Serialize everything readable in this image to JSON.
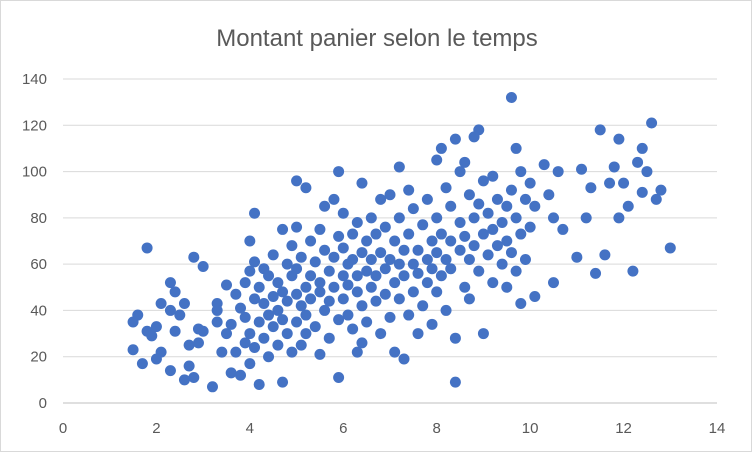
{
  "chart_data": {
    "type": "scatter",
    "title": "Montant panier selon le temps",
    "xlabel": "",
    "ylabel": "",
    "xlim": [
      0,
      14
    ],
    "ylim": [
      0,
      140
    ],
    "x_ticks": [
      0,
      2,
      4,
      6,
      8,
      10,
      12,
      14
    ],
    "y_ticks": [
      0,
      20,
      40,
      60,
      80,
      100,
      120,
      140
    ],
    "grid": "horizontal",
    "legend": "none",
    "marker_color": "#4472c4",
    "series": [
      {
        "points": [
          [
            1.5,
            23
          ],
          [
            1.5,
            35
          ],
          [
            1.6,
            38
          ],
          [
            1.7,
            17
          ],
          [
            1.8,
            31
          ],
          [
            1.8,
            67
          ],
          [
            1.9,
            29
          ],
          [
            2,
            33
          ],
          [
            2,
            19
          ],
          [
            2.1,
            43
          ],
          [
            2.1,
            22
          ],
          [
            2.3,
            52
          ],
          [
            2.3,
            14
          ],
          [
            2.3,
            40
          ],
          [
            2.4,
            31
          ],
          [
            2.4,
            48
          ],
          [
            2.5,
            38
          ],
          [
            2.6,
            10
          ],
          [
            2.6,
            43
          ],
          [
            2.7,
            16
          ],
          [
            2.7,
            25
          ],
          [
            2.8,
            63
          ],
          [
            2.8,
            11
          ],
          [
            2.9,
            26
          ],
          [
            2.9,
            32
          ],
          [
            3,
            59
          ],
          [
            3,
            31
          ],
          [
            3.2,
            7
          ],
          [
            3.3,
            35
          ],
          [
            3.3,
            43
          ],
          [
            3.3,
            40
          ],
          [
            3.4,
            22
          ],
          [
            3.5,
            51
          ],
          [
            3.5,
            30
          ],
          [
            3.6,
            13
          ],
          [
            3.6,
            34
          ],
          [
            3.7,
            47
          ],
          [
            3.7,
            22
          ],
          [
            3.8,
            12
          ],
          [
            3.8,
            41
          ],
          [
            3.9,
            37
          ],
          [
            3.9,
            26
          ],
          [
            3.9,
            52
          ],
          [
            4,
            70
          ],
          [
            4,
            30
          ],
          [
            4,
            57
          ],
          [
            4,
            17
          ],
          [
            4.1,
            82
          ],
          [
            4.1,
            45
          ],
          [
            4.1,
            61
          ],
          [
            4.1,
            24
          ],
          [
            4.2,
            8
          ],
          [
            4.2,
            35
          ],
          [
            4.2,
            50
          ],
          [
            4.3,
            58
          ],
          [
            4.3,
            43
          ],
          [
            4.3,
            28
          ],
          [
            4.4,
            38
          ],
          [
            4.4,
            55
          ],
          [
            4.4,
            20
          ],
          [
            4.5,
            46
          ],
          [
            4.5,
            33
          ],
          [
            4.5,
            64
          ],
          [
            4.6,
            25
          ],
          [
            4.6,
            52
          ],
          [
            4.6,
            40
          ],
          [
            4.7,
            75
          ],
          [
            4.7,
            9
          ],
          [
            4.7,
            48
          ],
          [
            4.7,
            36
          ],
          [
            4.8,
            60
          ],
          [
            4.8,
            30
          ],
          [
            4.8,
            44
          ],
          [
            4.9,
            68
          ],
          [
            4.9,
            22
          ],
          [
            4.9,
            55
          ],
          [
            5,
            35
          ],
          [
            5,
            47
          ],
          [
            5,
            76
          ],
          [
            5,
            58
          ],
          [
            5,
            96
          ],
          [
            5.1,
            42
          ],
          [
            5.1,
            25
          ],
          [
            5.1,
            63
          ],
          [
            5.2,
            93
          ],
          [
            5.2,
            50
          ],
          [
            5.2,
            38
          ],
          [
            5.2,
            30
          ],
          [
            5.3,
            70
          ],
          [
            5.3,
            55
          ],
          [
            5.3,
            45
          ],
          [
            5.4,
            61
          ],
          [
            5.4,
            33
          ],
          [
            5.5,
            75
          ],
          [
            5.5,
            21
          ],
          [
            5.5,
            48
          ],
          [
            5.5,
            52
          ],
          [
            5.6,
            40
          ],
          [
            5.6,
            66
          ],
          [
            5.6,
            85
          ],
          [
            5.7,
            57
          ],
          [
            5.7,
            44
          ],
          [
            5.7,
            28
          ],
          [
            5.8,
            88
          ],
          [
            5.8,
            63
          ],
          [
            5.8,
            50
          ],
          [
            5.9,
            11
          ],
          [
            5.9,
            72
          ],
          [
            5.9,
            36
          ],
          [
            5.9,
            100
          ],
          [
            6,
            55
          ],
          [
            6,
            45
          ],
          [
            6,
            67
          ],
          [
            6,
            82
          ],
          [
            6.1,
            38
          ],
          [
            6.1,
            60
          ],
          [
            6.1,
            51
          ],
          [
            6.2,
            73
          ],
          [
            6.2,
            32
          ],
          [
            6.2,
            62
          ],
          [
            6.3,
            22
          ],
          [
            6.3,
            48
          ],
          [
            6.3,
            78
          ],
          [
            6.3,
            55
          ],
          [
            6.4,
            95
          ],
          [
            6.4,
            65
          ],
          [
            6.4,
            42
          ],
          [
            6.4,
            26
          ],
          [
            6.5,
            57
          ],
          [
            6.5,
            70
          ],
          [
            6.5,
            35
          ],
          [
            6.6,
            50
          ],
          [
            6.6,
            62
          ],
          [
            6.6,
            80
          ],
          [
            6.7,
            44
          ],
          [
            6.7,
            73
          ],
          [
            6.7,
            55
          ],
          [
            6.8,
            30
          ],
          [
            6.8,
            65
          ],
          [
            6.8,
            88
          ],
          [
            6.9,
            58
          ],
          [
            6.9,
            47
          ],
          [
            6.9,
            76
          ],
          [
            7,
            62
          ],
          [
            7,
            37
          ],
          [
            7,
            90
          ],
          [
            7.1,
            52
          ],
          [
            7.1,
            70
          ],
          [
            7.1,
            22
          ],
          [
            7.2,
            102
          ],
          [
            7.2,
            60
          ],
          [
            7.2,
            45
          ],
          [
            7.2,
            80
          ],
          [
            7.3,
            19
          ],
          [
            7.3,
            55
          ],
          [
            7.3,
            66
          ],
          [
            7.4,
            73
          ],
          [
            7.4,
            38
          ],
          [
            7.4,
            92
          ],
          [
            7.5,
            60
          ],
          [
            7.5,
            48
          ],
          [
            7.5,
            84
          ],
          [
            7.6,
            30
          ],
          [
            7.6,
            66
          ],
          [
            7.6,
            56
          ],
          [
            7.7,
            77
          ],
          [
            7.7,
            42
          ],
          [
            7.8,
            62
          ],
          [
            7.8,
            88
          ],
          [
            7.8,
            52
          ],
          [
            7.9,
            70
          ],
          [
            7.9,
            34
          ],
          [
            7.9,
            58
          ],
          [
            8,
            105
          ],
          [
            8,
            80
          ],
          [
            8,
            48
          ],
          [
            8,
            65
          ],
          [
            8.1,
            110
          ],
          [
            8.1,
            55
          ],
          [
            8.1,
            73
          ],
          [
            8.2,
            93
          ],
          [
            8.2,
            62
          ],
          [
            8.2,
            40
          ],
          [
            8.3,
            85
          ],
          [
            8.3,
            70
          ],
          [
            8.3,
            58
          ],
          [
            8.4,
            114
          ],
          [
            8.4,
            28
          ],
          [
            8.4,
            9
          ],
          [
            8.5,
            100
          ],
          [
            8.5,
            66
          ],
          [
            8.5,
            78
          ],
          [
            8.6,
            104
          ],
          [
            8.6,
            50
          ],
          [
            8.6,
            72
          ],
          [
            8.7,
            90
          ],
          [
            8.7,
            62
          ],
          [
            8.7,
            45
          ],
          [
            8.8,
            115
          ],
          [
            8.8,
            80
          ],
          [
            8.8,
            68
          ],
          [
            8.9,
            118
          ],
          [
            8.9,
            57
          ],
          [
            8.9,
            86
          ],
          [
            9,
            73
          ],
          [
            9,
            30
          ],
          [
            9,
            96
          ],
          [
            9.1,
            64
          ],
          [
            9.1,
            82
          ],
          [
            9.2,
            52
          ],
          [
            9.2,
            75
          ],
          [
            9.2,
            98
          ],
          [
            9.3,
            68
          ],
          [
            9.3,
            88
          ],
          [
            9.4,
            60
          ],
          [
            9.4,
            78
          ],
          [
            9.5,
            85
          ],
          [
            9.5,
            70
          ],
          [
            9.5,
            50
          ],
          [
            9.6,
            92
          ],
          [
            9.6,
            132
          ],
          [
            9.6,
            65
          ],
          [
            9.7,
            110
          ],
          [
            9.7,
            80
          ],
          [
            9.7,
            57
          ],
          [
            9.8,
            100
          ],
          [
            9.8,
            43
          ],
          [
            9.8,
            73
          ],
          [
            9.9,
            88
          ],
          [
            9.9,
            62
          ],
          [
            10,
            95
          ],
          [
            10,
            76
          ],
          [
            10.1,
            85
          ],
          [
            10.1,
            46
          ],
          [
            10.3,
            103
          ],
          [
            10.4,
            90
          ],
          [
            10.5,
            80
          ],
          [
            10.5,
            52
          ],
          [
            10.6,
            100
          ],
          [
            10.7,
            75
          ],
          [
            11,
            63
          ],
          [
            11.1,
            101
          ],
          [
            11.2,
            80
          ],
          [
            11.3,
            93
          ],
          [
            11.4,
            56
          ],
          [
            11.5,
            118
          ],
          [
            11.6,
            64
          ],
          [
            11.7,
            95
          ],
          [
            11.8,
            102
          ],
          [
            11.9,
            114
          ],
          [
            11.9,
            80
          ],
          [
            12,
            95
          ],
          [
            12.1,
            85
          ],
          [
            12.2,
            57
          ],
          [
            12.3,
            104
          ],
          [
            12.4,
            110
          ],
          [
            12.4,
            91
          ],
          [
            12.5,
            100
          ],
          [
            12.6,
            121
          ],
          [
            12.7,
            88
          ],
          [
            12.8,
            92
          ],
          [
            13,
            67
          ]
        ]
      }
    ]
  }
}
